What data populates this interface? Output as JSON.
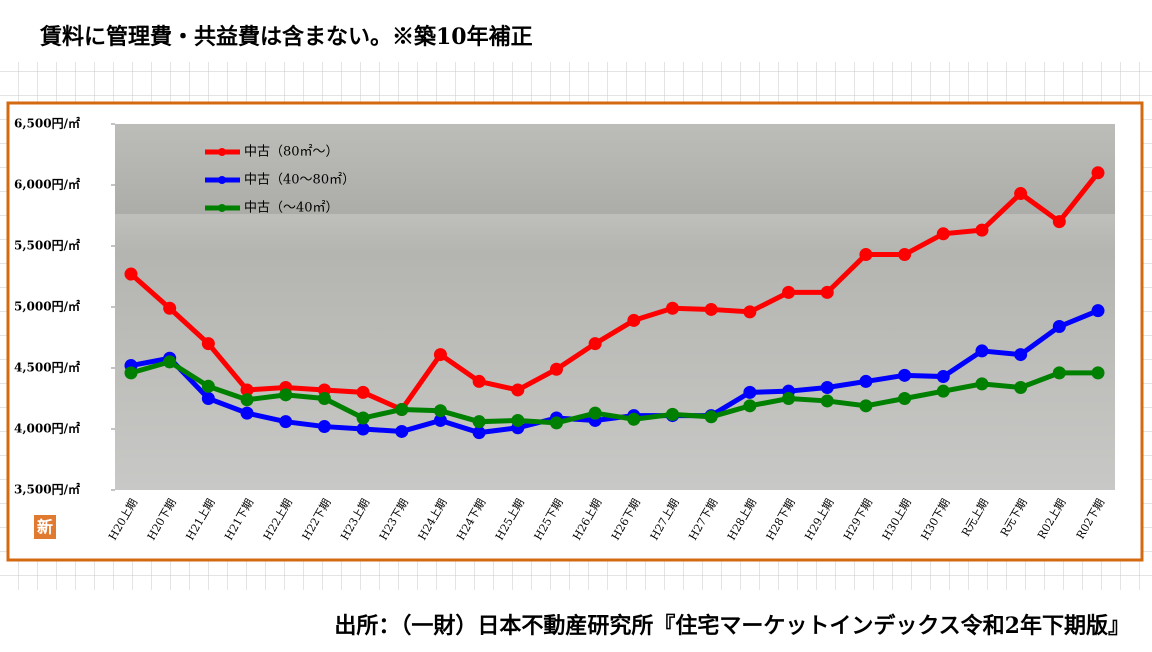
{
  "header": {
    "title": "賃料に管理費・共益費は含まない。※築10年補正"
  },
  "chart_data": {
    "type": "line",
    "categories": [
      "H20上期",
      "H20下期",
      "H21上期",
      "H21下期",
      "H22上期",
      "H22下期",
      "H23上期",
      "H23下期",
      "H24上期",
      "H24下期",
      "H25上期",
      "H25下期",
      "H26上期",
      "H26下期",
      "H27上期",
      "H27下期",
      "H28上期",
      "H28下期",
      "H29上期",
      "H29下期",
      "H30上期",
      "H30下期",
      "R元上期",
      "R元下期",
      "R02上期",
      "R02下期"
    ],
    "series": [
      {
        "name": "中古（80㎡～）",
        "color": "#ff0000",
        "values": [
          5270,
          4990,
          4700,
          4320,
          4340,
          4320,
          4300,
          4160,
          4610,
          4390,
          4320,
          4490,
          4700,
          4890,
          4990,
          4980,
          4960,
          5120,
          5120,
          5430,
          5430,
          5600,
          5630,
          5930,
          5700,
          6100
        ]
      },
      {
        "name": "中古（40～80㎡）",
        "color": "#0000ff",
        "values": [
          4520,
          4580,
          4250,
          4130,
          4060,
          4020,
          4000,
          3980,
          4070,
          3970,
          4010,
          4090,
          4070,
          4110,
          4110,
          4110,
          4300,
          4310,
          4340,
          4390,
          4440,
          4430,
          4640,
          4610,
          4840,
          4970
        ]
      },
      {
        "name": "中古（～40㎡）",
        "color": "#008000",
        "values": [
          4460,
          4550,
          4350,
          4240,
          4280,
          4250,
          4090,
          4160,
          4150,
          4060,
          4070,
          4050,
          4130,
          4080,
          4120,
          4100,
          4190,
          4250,
          4230,
          4190,
          4250,
          4310,
          4370,
          4340,
          4460,
          4460
        ]
      }
    ],
    "ylim": [
      3500,
      6500
    ],
    "yticks": [
      {
        "value": 3500,
        "label": "3,500円/㎡"
      },
      {
        "value": 4000,
        "label": "4,000円/㎡"
      },
      {
        "value": 4500,
        "label": "4,500円/㎡"
      },
      {
        "value": 5000,
        "label": "5,000円/㎡"
      },
      {
        "value": 5500,
        "label": "5,500円/㎡"
      },
      {
        "value": 6000,
        "label": "6,000円/㎡"
      },
      {
        "value": 6500,
        "label": "6,500円/㎡"
      }
    ],
    "legend": "upper left"
  },
  "badge": "新",
  "footer": {
    "source": "出所：（一財）日本不動産研究所『住宅マーケットインデックス令和2年下期版』"
  }
}
